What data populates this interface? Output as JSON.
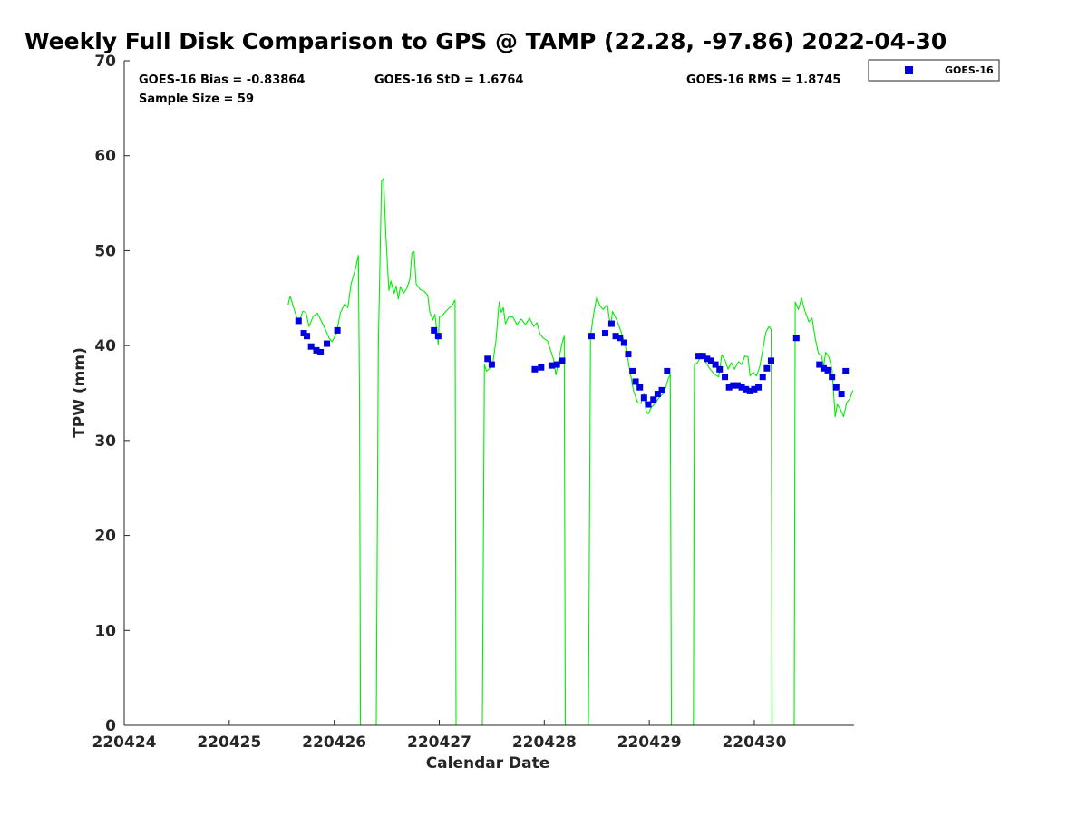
{
  "chart_data": {
    "type": "scatter",
    "title": "Weekly Full Disk Comparison to GPS @ TAMP (22.28, -97.86) 2022-04-30",
    "xlabel": "Calendar Date",
    "ylabel": "TPW (mm)",
    "xlim": [
      0,
      6.95
    ],
    "ylim": [
      0,
      70
    ],
    "x_ticks": [
      0,
      1,
      2,
      3,
      4,
      5,
      6
    ],
    "x_tick_labels": [
      "220424",
      "220425",
      "220426",
      "220427",
      "220428",
      "220429",
      "220430"
    ],
    "y_ticks": [
      0,
      10,
      20,
      30,
      40,
      50,
      60,
      70
    ],
    "y_tick_labels": [
      "0",
      "10",
      "20",
      "30",
      "40",
      "50",
      "60",
      "70"
    ],
    "stats": {
      "bias": "GOES-16 Bias = -0.83864",
      "std": "GOES-16 StD = 1.6764",
      "rms": "GOES-16 RMS = 1.8745",
      "sample": "Sample Size = 59"
    },
    "legend": {
      "position": "top-right-outside",
      "entries": [
        "GOES-16"
      ]
    },
    "colors": {
      "goes": "#0000dd",
      "gps_line": "#00ee00"
    },
    "series": [
      {
        "name": "GOES-16",
        "type": "scatter",
        "points": [
          [
            1.66,
            42.6
          ],
          [
            1.71,
            41.3
          ],
          [
            1.74,
            41.0
          ],
          [
            1.78,
            39.9
          ],
          [
            1.83,
            39.5
          ],
          [
            1.87,
            39.3
          ],
          [
            1.93,
            40.2
          ],
          [
            2.03,
            41.6
          ],
          [
            2.95,
            41.6
          ],
          [
            2.99,
            41.0
          ],
          [
            3.46,
            38.6
          ],
          [
            3.5,
            38.0
          ],
          [
            3.91,
            37.5
          ],
          [
            3.97,
            37.7
          ],
          [
            4.07,
            37.9
          ],
          [
            4.12,
            38.0
          ],
          [
            4.17,
            38.4
          ],
          [
            4.45,
            41.0
          ],
          [
            4.58,
            41.3
          ],
          [
            4.64,
            42.3
          ],
          [
            4.68,
            41.0
          ],
          [
            4.72,
            40.8
          ],
          [
            4.76,
            40.3
          ],
          [
            4.8,
            39.1
          ],
          [
            4.84,
            37.3
          ],
          [
            4.87,
            36.2
          ],
          [
            4.91,
            35.6
          ],
          [
            4.95,
            34.5
          ],
          [
            4.99,
            33.8
          ],
          [
            5.04,
            34.3
          ],
          [
            5.08,
            34.9
          ],
          [
            5.12,
            35.3
          ],
          [
            5.17,
            37.3
          ],
          [
            5.47,
            38.9
          ],
          [
            5.51,
            38.9
          ],
          [
            5.55,
            38.6
          ],
          [
            5.59,
            38.4
          ],
          [
            5.63,
            38.0
          ],
          [
            5.67,
            37.5
          ],
          [
            5.72,
            36.7
          ],
          [
            5.76,
            35.6
          ],
          [
            5.8,
            35.8
          ],
          [
            5.84,
            35.8
          ],
          [
            5.88,
            35.6
          ],
          [
            5.92,
            35.4
          ],
          [
            5.96,
            35.2
          ],
          [
            6.0,
            35.4
          ],
          [
            6.04,
            35.6
          ],
          [
            6.08,
            36.7
          ],
          [
            6.12,
            37.6
          ],
          [
            6.16,
            38.4
          ],
          [
            6.4,
            40.8
          ],
          [
            6.62,
            38.0
          ],
          [
            6.66,
            37.6
          ],
          [
            6.7,
            37.4
          ],
          [
            6.74,
            36.7
          ],
          [
            6.78,
            35.6
          ],
          [
            6.83,
            34.9
          ],
          [
            6.87,
            37.3
          ]
        ]
      },
      {
        "name": "GPS",
        "type": "line",
        "points": [
          [
            1.56,
            44.3
          ],
          [
            1.58,
            45.2
          ],
          [
            1.62,
            43.8
          ],
          [
            1.66,
            42.3
          ],
          [
            1.7,
            43.6
          ],
          [
            1.73,
            43.5
          ],
          [
            1.76,
            42.0
          ],
          [
            1.8,
            43.1
          ],
          [
            1.84,
            43.4
          ],
          [
            1.88,
            42.5
          ],
          [
            1.92,
            41.6
          ],
          [
            1.95,
            40.8
          ],
          [
            1.98,
            40.4
          ],
          [
            2.02,
            41.3
          ],
          [
            2.06,
            43.5
          ],
          [
            2.1,
            44.4
          ],
          [
            2.13,
            44.0
          ],
          [
            2.16,
            46.5
          ],
          [
            2.2,
            48.0
          ],
          [
            2.23,
            49.5
          ],
          [
            2.24,
            35.0
          ],
          [
            2.25,
            0
          ],
          [
            2.4,
            0
          ],
          [
            2.42,
            40.0
          ],
          [
            2.45,
            57.3
          ],
          [
            2.47,
            57.6
          ],
          [
            2.49,
            52.0
          ],
          [
            2.52,
            45.8
          ],
          [
            2.54,
            46.8
          ],
          [
            2.57,
            45.5
          ],
          [
            2.59,
            46.3
          ],
          [
            2.61,
            44.9
          ],
          [
            2.63,
            46.2
          ],
          [
            2.66,
            45.5
          ],
          [
            2.69,
            46.0
          ],
          [
            2.72,
            47.0
          ],
          [
            2.74,
            49.8
          ],
          [
            2.76,
            49.9
          ],
          [
            2.78,
            46.5
          ],
          [
            2.82,
            45.9
          ],
          [
            2.86,
            45.7
          ],
          [
            2.89,
            45.3
          ],
          [
            2.91,
            43.5
          ],
          [
            2.94,
            42.7
          ],
          [
            2.96,
            43.3
          ],
          [
            2.99,
            40.1
          ],
          [
            3.0,
            43.0
          ],
          [
            3.03,
            43.2
          ],
          [
            3.08,
            43.8
          ],
          [
            3.12,
            44.2
          ],
          [
            3.15,
            44.8
          ],
          [
            3.16,
            0
          ],
          [
            3.41,
            0
          ],
          [
            3.43,
            38.0
          ],
          [
            3.45,
            37.3
          ],
          [
            3.48,
            37.6
          ],
          [
            3.51,
            38.2
          ],
          [
            3.54,
            40.5
          ],
          [
            3.57,
            44.6
          ],
          [
            3.59,
            43.5
          ],
          [
            3.61,
            44.0
          ],
          [
            3.63,
            42.3
          ],
          [
            3.66,
            43.0
          ],
          [
            3.7,
            43.0
          ],
          [
            3.74,
            42.2
          ],
          [
            3.78,
            42.8
          ],
          [
            3.82,
            42.2
          ],
          [
            3.86,
            42.9
          ],
          [
            3.9,
            42.0
          ],
          [
            3.93,
            42.4
          ],
          [
            3.96,
            41.2
          ],
          [
            3.99,
            40.8
          ],
          [
            4.03,
            40.5
          ],
          [
            4.06,
            39.5
          ],
          [
            4.09,
            38.5
          ],
          [
            4.11,
            36.9
          ],
          [
            4.14,
            38.6
          ],
          [
            4.17,
            40.3
          ],
          [
            4.19,
            41.0
          ],
          [
            4.2,
            0
          ],
          [
            4.42,
            0
          ],
          [
            4.44,
            41.0
          ],
          [
            4.47,
            43.3
          ],
          [
            4.5,
            45.1
          ],
          [
            4.53,
            44.2
          ],
          [
            4.56,
            43.8
          ],
          [
            4.6,
            44.3
          ],
          [
            4.63,
            42.0
          ],
          [
            4.65,
            43.6
          ],
          [
            4.69,
            42.7
          ],
          [
            4.73,
            41.5
          ],
          [
            4.77,
            40.1
          ],
          [
            4.81,
            37.7
          ],
          [
            4.85,
            35.2
          ],
          [
            4.89,
            34.0
          ],
          [
            4.92,
            33.9
          ],
          [
            4.95,
            34.9
          ],
          [
            4.97,
            33.1
          ],
          [
            4.99,
            32.8
          ],
          [
            5.02,
            33.5
          ],
          [
            5.06,
            34.0
          ],
          [
            5.1,
            34.6
          ],
          [
            5.14,
            35.0
          ],
          [
            5.18,
            36.5
          ],
          [
            5.2,
            37.0
          ],
          [
            5.21,
            0
          ],
          [
            5.42,
            0
          ],
          [
            5.43,
            38.0
          ],
          [
            5.46,
            38.2
          ],
          [
            5.5,
            39.1
          ],
          [
            5.54,
            38.2
          ],
          [
            5.58,
            37.5
          ],
          [
            5.62,
            37.0
          ],
          [
            5.66,
            36.7
          ],
          [
            5.69,
            39.0
          ],
          [
            5.72,
            38.5
          ],
          [
            5.75,
            37.5
          ],
          [
            5.78,
            38.2
          ],
          [
            5.81,
            37.5
          ],
          [
            5.85,
            38.3
          ],
          [
            5.88,
            38.0
          ],
          [
            5.91,
            38.9
          ],
          [
            5.94,
            38.8
          ],
          [
            5.96,
            36.8
          ],
          [
            5.99,
            37.2
          ],
          [
            6.02,
            36.8
          ],
          [
            6.05,
            37.7
          ],
          [
            6.08,
            39.5
          ],
          [
            6.11,
            41.4
          ],
          [
            6.14,
            42.0
          ],
          [
            6.16,
            41.7
          ],
          [
            6.17,
            0
          ],
          [
            6.38,
            0
          ],
          [
            6.39,
            44.6
          ],
          [
            6.42,
            43.8
          ],
          [
            6.45,
            45.0
          ],
          [
            6.48,
            43.7
          ],
          [
            6.52,
            42.5
          ],
          [
            6.55,
            42.9
          ],
          [
            6.58,
            40.8
          ],
          [
            6.61,
            39.2
          ],
          [
            6.64,
            38.9
          ],
          [
            6.66,
            37.8
          ],
          [
            6.68,
            39.3
          ],
          [
            6.71,
            38.8
          ],
          [
            6.74,
            37.5
          ],
          [
            6.77,
            32.5
          ],
          [
            6.79,
            33.8
          ],
          [
            6.82,
            33.3
          ],
          [
            6.85,
            32.5
          ],
          [
            6.88,
            34.0
          ],
          [
            6.91,
            34.4
          ],
          [
            6.94,
            35.3
          ]
        ]
      }
    ]
  }
}
